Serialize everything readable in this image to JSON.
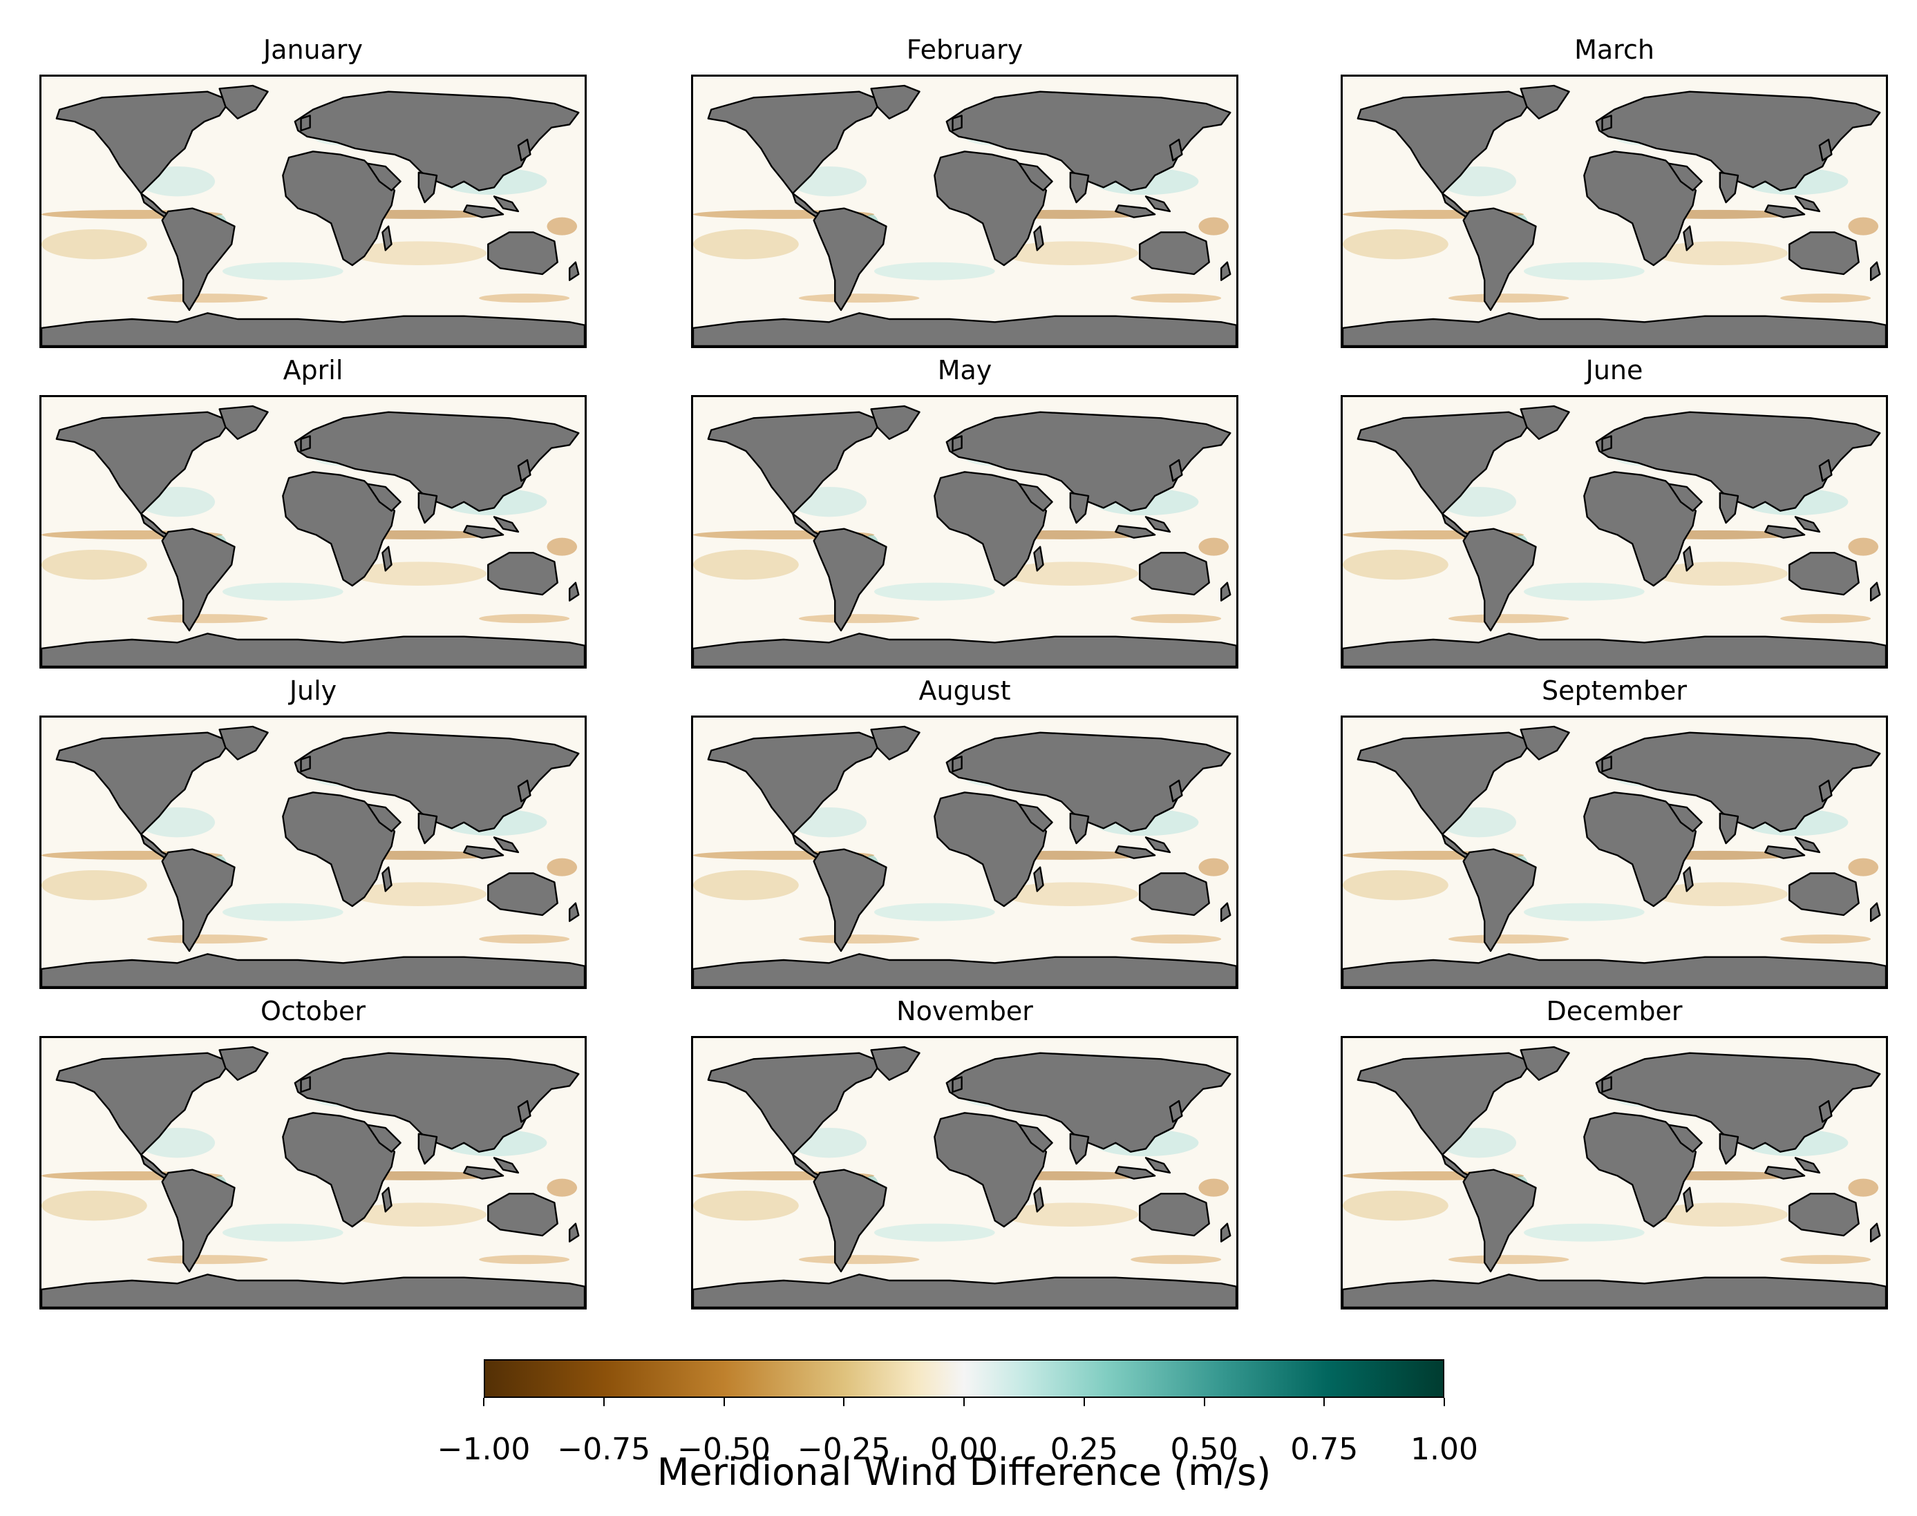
{
  "figure": {
    "panels": [
      {
        "title": "January"
      },
      {
        "title": "February"
      },
      {
        "title": "March"
      },
      {
        "title": "April"
      },
      {
        "title": "May"
      },
      {
        "title": "June"
      },
      {
        "title": "July"
      },
      {
        "title": "August"
      },
      {
        "title": "September"
      },
      {
        "title": "October"
      },
      {
        "title": "November"
      },
      {
        "title": "December"
      }
    ],
    "land_color": "#777777",
    "coastline_color": "#000000",
    "ocean_background": "#fbf8f0"
  },
  "colorbar": {
    "label": "Meridional Wind Difference (m/s)",
    "vmin": -1.0,
    "vmax": 1.0,
    "colormap": "BrBG",
    "ticks": [
      "−1.00",
      "−0.75",
      "−0.50",
      "−0.25",
      "0.00",
      "0.25",
      "0.50",
      "0.75",
      "1.00"
    ],
    "tick_values": [
      -1.0,
      -0.75,
      -0.5,
      -0.25,
      0.0,
      0.25,
      0.5,
      0.75,
      1.0
    ]
  }
}
